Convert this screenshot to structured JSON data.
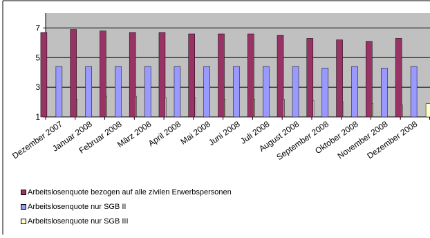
{
  "chart_data": {
    "type": "bar",
    "categories": [
      "Dezember 2007",
      "Januar 2008",
      "Februar 2008",
      "März 2008",
      "April 2008",
      "Mai 2008",
      "Juni 2008",
      "Juli 2008",
      "August 2008",
      "September 2008",
      "Oktober 2008",
      "November 2008",
      "Dezember 2008"
    ],
    "series": [
      {
        "name": "Arbeitslosenquote bezogen auf alle zivilen Erwerbspersonen",
        "color": "#993366",
        "values": [
          6.7,
          6.9,
          6.8,
          6.7,
          6.7,
          6.6,
          6.6,
          6.6,
          6.5,
          6.3,
          6.2,
          6.1,
          6.3
        ]
      },
      {
        "name": "Arbeitslosenquote nur SGB II",
        "color": "#9999FF",
        "values": [
          4.4,
          4.4,
          4.4,
          4.4,
          4.4,
          4.4,
          4.4,
          4.4,
          4.4,
          4.3,
          4.4,
          4.3,
          4.4
        ]
      },
      {
        "name": "Arbeitslosenquote nur SGB III",
        "color": "#FFFFCC",
        "values": [
          2.2,
          2.4,
          2.4,
          2.3,
          2.3,
          2.2,
          2.2,
          2.2,
          2.1,
          2.0,
          1.9,
          1.8,
          1.9
        ]
      }
    ],
    "yticks": [
      1,
      3,
      5,
      7
    ],
    "ylim": [
      1,
      8
    ],
    "grid": true,
    "legend_position": "bottom",
    "plot_background": "#C0C0C0"
  }
}
